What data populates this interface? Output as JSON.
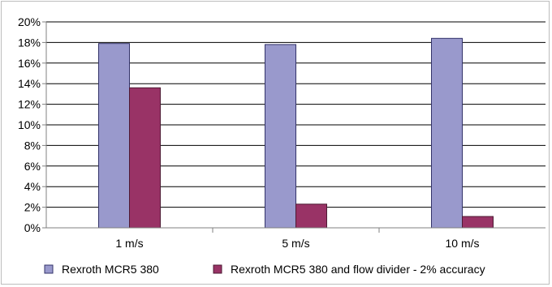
{
  "chart_data": {
    "type": "bar",
    "categories": [
      "1 m/s",
      "5 m/s",
      "10 m/s"
    ],
    "series": [
      {
        "name": "Rexroth MCR5 380",
        "values": [
          17.9,
          17.8,
          18.4
        ]
      },
      {
        "name": "Rexroth MCR5 380 and flow divider - 2% accuracy",
        "values": [
          13.6,
          2.3,
          1.1
        ]
      }
    ],
    "ylim": [
      0,
      20
    ],
    "yticks": [
      0,
      2,
      4,
      6,
      8,
      10,
      12,
      14,
      16,
      18,
      20
    ],
    "ytick_format": "percent",
    "grid": true,
    "legend_position": "bottom",
    "colors": {
      "series_fills": [
        "#9999cc",
        "#993366"
      ],
      "series_strokes": [
        "#33336a",
        "#4d1a33"
      ],
      "grid": "#000000",
      "axis": "#808080"
    }
  }
}
